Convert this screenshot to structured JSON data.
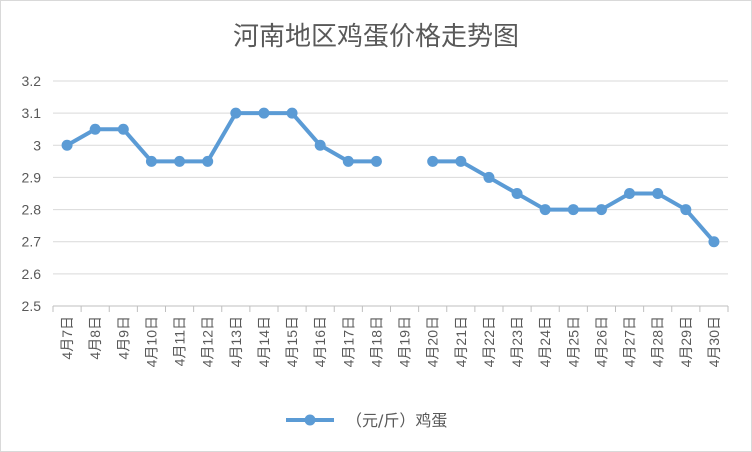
{
  "chart_data": {
    "type": "line",
    "title": "河南地区鸡蛋价格走势图",
    "xlabel": "",
    "ylabel": "",
    "ylim": [
      2.5,
      3.2
    ],
    "yticks": [
      "2.5",
      "2.6",
      "2.7",
      "2.8",
      "2.9",
      "3",
      "3.1",
      "3.2"
    ],
    "grid": true,
    "legend_position": "bottom",
    "categories": [
      "4月7日",
      "4月8日",
      "4月9日",
      "4月10日",
      "4月11日",
      "4月12日",
      "4月13日",
      "4月14日",
      "4月15日",
      "4月16日",
      "4月17日",
      "4月18日",
      "4月19日",
      "4月20日",
      "4月21日",
      "4月22日",
      "4月23日",
      "4月24日",
      "4月25日",
      "4月26日",
      "4月27日",
      "4月28日",
      "4月29日",
      "4月30日"
    ],
    "series": [
      {
        "name": "（元/斤）鸡蛋",
        "color": "#5b9bd5",
        "values": [
          3.0,
          3.05,
          3.05,
          2.95,
          2.95,
          2.95,
          3.1,
          3.1,
          3.1,
          3.0,
          2.95,
          2.95,
          null,
          2.95,
          2.95,
          2.9,
          2.85,
          2.8,
          2.8,
          2.8,
          2.85,
          2.85,
          2.8,
          2.7
        ]
      }
    ]
  }
}
